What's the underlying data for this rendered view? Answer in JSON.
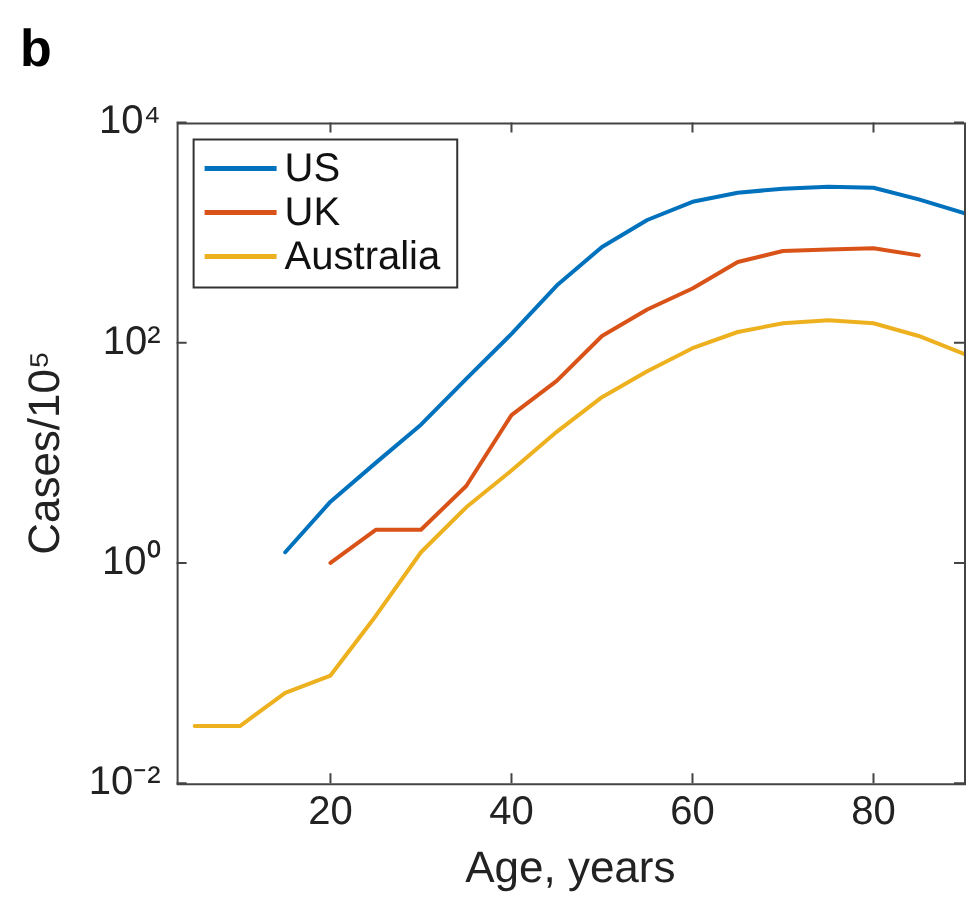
{
  "chart_data": {
    "type": "line",
    "title": "b",
    "xlabel": "Age, years",
    "ylabel": "Cases/10⁵",
    "x": [
      5,
      10,
      15,
      20,
      25,
      30,
      35,
      40,
      45,
      50,
      55,
      60,
      65,
      70,
      75,
      80,
      85,
      90
    ],
    "series": [
      {
        "name": "US",
        "color": "#0072bd",
        "values": [
          null,
          null,
          1.25,
          3.6,
          8.1,
          18,
          47,
          120,
          330,
          740,
          1300,
          1900,
          2300,
          2500,
          2600,
          2550,
          2000,
          1500
        ]
      },
      {
        "name": "UK",
        "color": "#d95319",
        "values": [
          null,
          null,
          null,
          1.0,
          2.0,
          2.0,
          5,
          22,
          45,
          115,
          200,
          310,
          540,
          680,
          700,
          720,
          620,
          null
        ]
      },
      {
        "name": "Australia",
        "color": "#edb120",
        "values": [
          0.033,
          0.033,
          0.066,
          0.095,
          0.33,
          1.25,
          3.2,
          6.9,
          15.5,
          32,
          55,
          89,
          125,
          150,
          160,
          150,
          115,
          79
        ]
      }
    ],
    "log": "y",
    "xlim": [
      3,
      90
    ],
    "xticks": [
      20,
      40,
      60,
      80
    ],
    "ylim": [
      0.01,
      10000
    ],
    "yticks": [
      {
        "value": 0.01,
        "label": "10⁻²"
      },
      {
        "value": 1,
        "label": "10⁰"
      },
      {
        "value": 100,
        "label": "10²"
      },
      {
        "value": 10000,
        "label": "10⁴"
      }
    ],
    "grid": false,
    "legend": "top left",
    "marker": "none",
    "line_style": "solid"
  }
}
